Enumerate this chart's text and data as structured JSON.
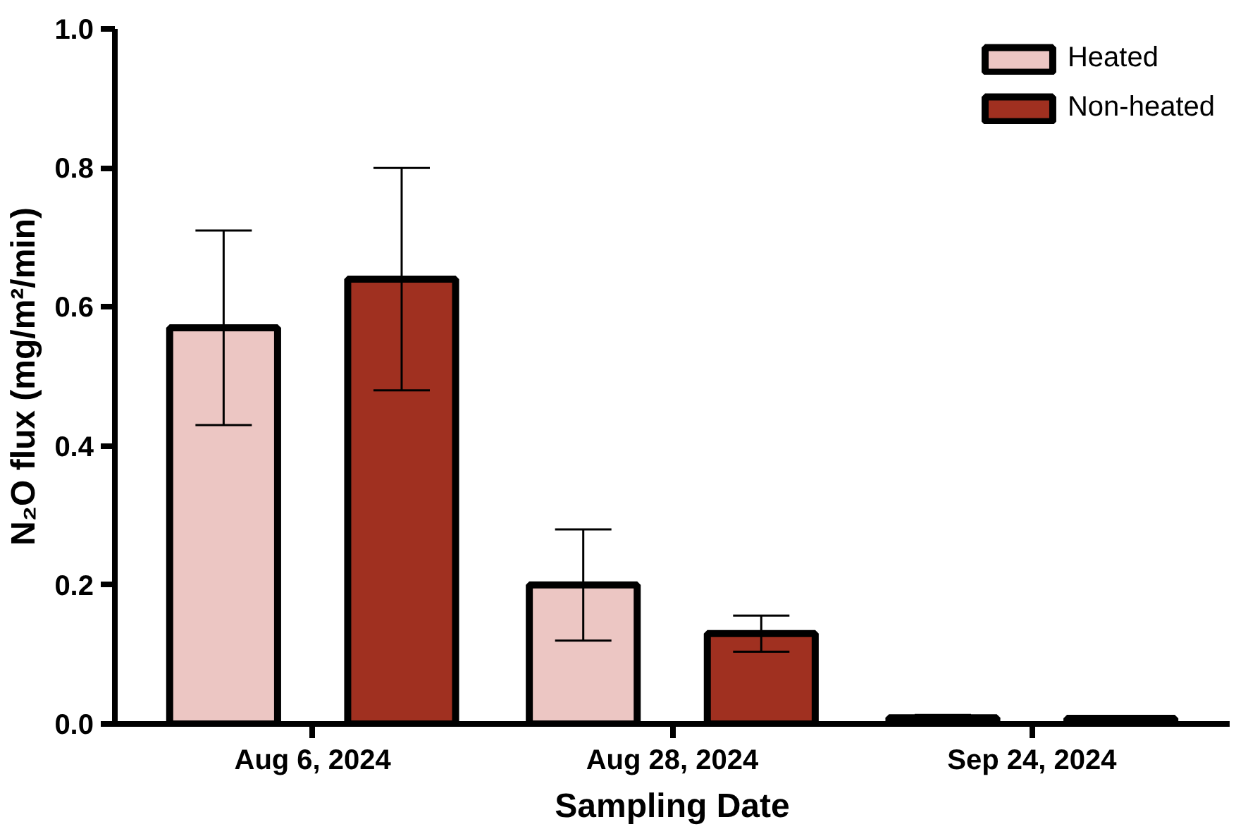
{
  "chart_data": {
    "type": "bar",
    "xlabel": "Sampling Date",
    "ylabel": "N₂O flux (mg/m²/min)",
    "categories": [
      "Aug 6, 2024",
      "Aug 28, 2024",
      "Sep 24, 2024"
    ],
    "series": [
      {
        "name": "Heated",
        "color": "#ecc6c3",
        "values": [
          0.57,
          0.2,
          0.009
        ],
        "errors": [
          0.14,
          0.08,
          0.004
        ]
      },
      {
        "name": "Non-heated",
        "color": "#a03020",
        "values": [
          0.64,
          0.13,
          0.008
        ],
        "errors": [
          0.16,
          0.026,
          0.003
        ]
      }
    ],
    "ylim": [
      0,
      1
    ],
    "yticks": [
      {
        "value": 0,
        "label": "0.0"
      },
      {
        "value": 0.2,
        "label": "0.2"
      },
      {
        "value": 0.4,
        "label": "0.4"
      },
      {
        "value": 0.6,
        "label": "0.6"
      },
      {
        "value": 0.8,
        "label": "0.8"
      },
      {
        "value": 1,
        "label": "1.0"
      }
    ],
    "grid": false,
    "legend": "top right"
  }
}
